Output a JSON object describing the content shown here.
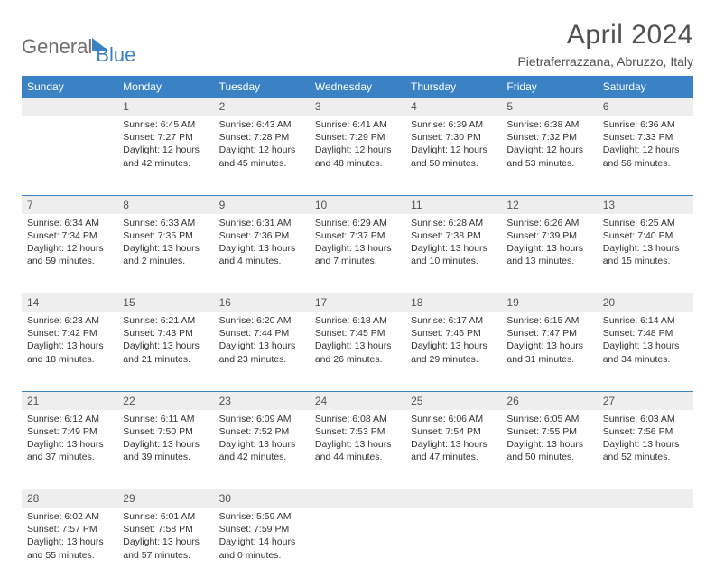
{
  "branding": {
    "word1": "General",
    "word2": "Blue"
  },
  "title": "April 2024",
  "location": "Pietraferrazzana, Abruzzo, Italy",
  "colors": {
    "header_bg": "#3b82c4",
    "header_text": "#ffffff",
    "daynum_bg": "#eeeeee",
    "rule": "#3b82c4",
    "text": "#333333",
    "logo_gray": "#707070",
    "logo_blue": "#3b82c4",
    "page_bg": "#ffffff"
  },
  "day_headers": [
    "Sunday",
    "Monday",
    "Tuesday",
    "Wednesday",
    "Thursday",
    "Friday",
    "Saturday"
  ],
  "weeks": [
    [
      {
        "n": "",
        "lines": []
      },
      {
        "n": "1",
        "lines": [
          "Sunrise: 6:45 AM",
          "Sunset: 7:27 PM",
          "Daylight: 12 hours and 42 minutes."
        ]
      },
      {
        "n": "2",
        "lines": [
          "Sunrise: 6:43 AM",
          "Sunset: 7:28 PM",
          "Daylight: 12 hours and 45 minutes."
        ]
      },
      {
        "n": "3",
        "lines": [
          "Sunrise: 6:41 AM",
          "Sunset: 7:29 PM",
          "Daylight: 12 hours and 48 minutes."
        ]
      },
      {
        "n": "4",
        "lines": [
          "Sunrise: 6:39 AM",
          "Sunset: 7:30 PM",
          "Daylight: 12 hours and 50 minutes."
        ]
      },
      {
        "n": "5",
        "lines": [
          "Sunrise: 6:38 AM",
          "Sunset: 7:32 PM",
          "Daylight: 12 hours and 53 minutes."
        ]
      },
      {
        "n": "6",
        "lines": [
          "Sunrise: 6:36 AM",
          "Sunset: 7:33 PM",
          "Daylight: 12 hours and 56 minutes."
        ]
      }
    ],
    [
      {
        "n": "7",
        "lines": [
          "Sunrise: 6:34 AM",
          "Sunset: 7:34 PM",
          "Daylight: 12 hours and 59 minutes."
        ]
      },
      {
        "n": "8",
        "lines": [
          "Sunrise: 6:33 AM",
          "Sunset: 7:35 PM",
          "Daylight: 13 hours and 2 minutes."
        ]
      },
      {
        "n": "9",
        "lines": [
          "Sunrise: 6:31 AM",
          "Sunset: 7:36 PM",
          "Daylight: 13 hours and 4 minutes."
        ]
      },
      {
        "n": "10",
        "lines": [
          "Sunrise: 6:29 AM",
          "Sunset: 7:37 PM",
          "Daylight: 13 hours and 7 minutes."
        ]
      },
      {
        "n": "11",
        "lines": [
          "Sunrise: 6:28 AM",
          "Sunset: 7:38 PM",
          "Daylight: 13 hours and 10 minutes."
        ]
      },
      {
        "n": "12",
        "lines": [
          "Sunrise: 6:26 AM",
          "Sunset: 7:39 PM",
          "Daylight: 13 hours and 13 minutes."
        ]
      },
      {
        "n": "13",
        "lines": [
          "Sunrise: 6:25 AM",
          "Sunset: 7:40 PM",
          "Daylight: 13 hours and 15 minutes."
        ]
      }
    ],
    [
      {
        "n": "14",
        "lines": [
          "Sunrise: 6:23 AM",
          "Sunset: 7:42 PM",
          "Daylight: 13 hours and 18 minutes."
        ]
      },
      {
        "n": "15",
        "lines": [
          "Sunrise: 6:21 AM",
          "Sunset: 7:43 PM",
          "Daylight: 13 hours and 21 minutes."
        ]
      },
      {
        "n": "16",
        "lines": [
          "Sunrise: 6:20 AM",
          "Sunset: 7:44 PM",
          "Daylight: 13 hours and 23 minutes."
        ]
      },
      {
        "n": "17",
        "lines": [
          "Sunrise: 6:18 AM",
          "Sunset: 7:45 PM",
          "Daylight: 13 hours and 26 minutes."
        ]
      },
      {
        "n": "18",
        "lines": [
          "Sunrise: 6:17 AM",
          "Sunset: 7:46 PM",
          "Daylight: 13 hours and 29 minutes."
        ]
      },
      {
        "n": "19",
        "lines": [
          "Sunrise: 6:15 AM",
          "Sunset: 7:47 PM",
          "Daylight: 13 hours and 31 minutes."
        ]
      },
      {
        "n": "20",
        "lines": [
          "Sunrise: 6:14 AM",
          "Sunset: 7:48 PM",
          "Daylight: 13 hours and 34 minutes."
        ]
      }
    ],
    [
      {
        "n": "21",
        "lines": [
          "Sunrise: 6:12 AM",
          "Sunset: 7:49 PM",
          "Daylight: 13 hours and 37 minutes."
        ]
      },
      {
        "n": "22",
        "lines": [
          "Sunrise: 6:11 AM",
          "Sunset: 7:50 PM",
          "Daylight: 13 hours and 39 minutes."
        ]
      },
      {
        "n": "23",
        "lines": [
          "Sunrise: 6:09 AM",
          "Sunset: 7:52 PM",
          "Daylight: 13 hours and 42 minutes."
        ]
      },
      {
        "n": "24",
        "lines": [
          "Sunrise: 6:08 AM",
          "Sunset: 7:53 PM",
          "Daylight: 13 hours and 44 minutes."
        ]
      },
      {
        "n": "25",
        "lines": [
          "Sunrise: 6:06 AM",
          "Sunset: 7:54 PM",
          "Daylight: 13 hours and 47 minutes."
        ]
      },
      {
        "n": "26",
        "lines": [
          "Sunrise: 6:05 AM",
          "Sunset: 7:55 PM",
          "Daylight: 13 hours and 50 minutes."
        ]
      },
      {
        "n": "27",
        "lines": [
          "Sunrise: 6:03 AM",
          "Sunset: 7:56 PM",
          "Daylight: 13 hours and 52 minutes."
        ]
      }
    ],
    [
      {
        "n": "28",
        "lines": [
          "Sunrise: 6:02 AM",
          "Sunset: 7:57 PM",
          "Daylight: 13 hours and 55 minutes."
        ]
      },
      {
        "n": "29",
        "lines": [
          "Sunrise: 6:01 AM",
          "Sunset: 7:58 PM",
          "Daylight: 13 hours and 57 minutes."
        ]
      },
      {
        "n": "30",
        "lines": [
          "Sunrise: 5:59 AM",
          "Sunset: 7:59 PM",
          "Daylight: 14 hours and 0 minutes."
        ]
      },
      {
        "n": "",
        "lines": []
      },
      {
        "n": "",
        "lines": []
      },
      {
        "n": "",
        "lines": []
      },
      {
        "n": "",
        "lines": []
      }
    ]
  ]
}
